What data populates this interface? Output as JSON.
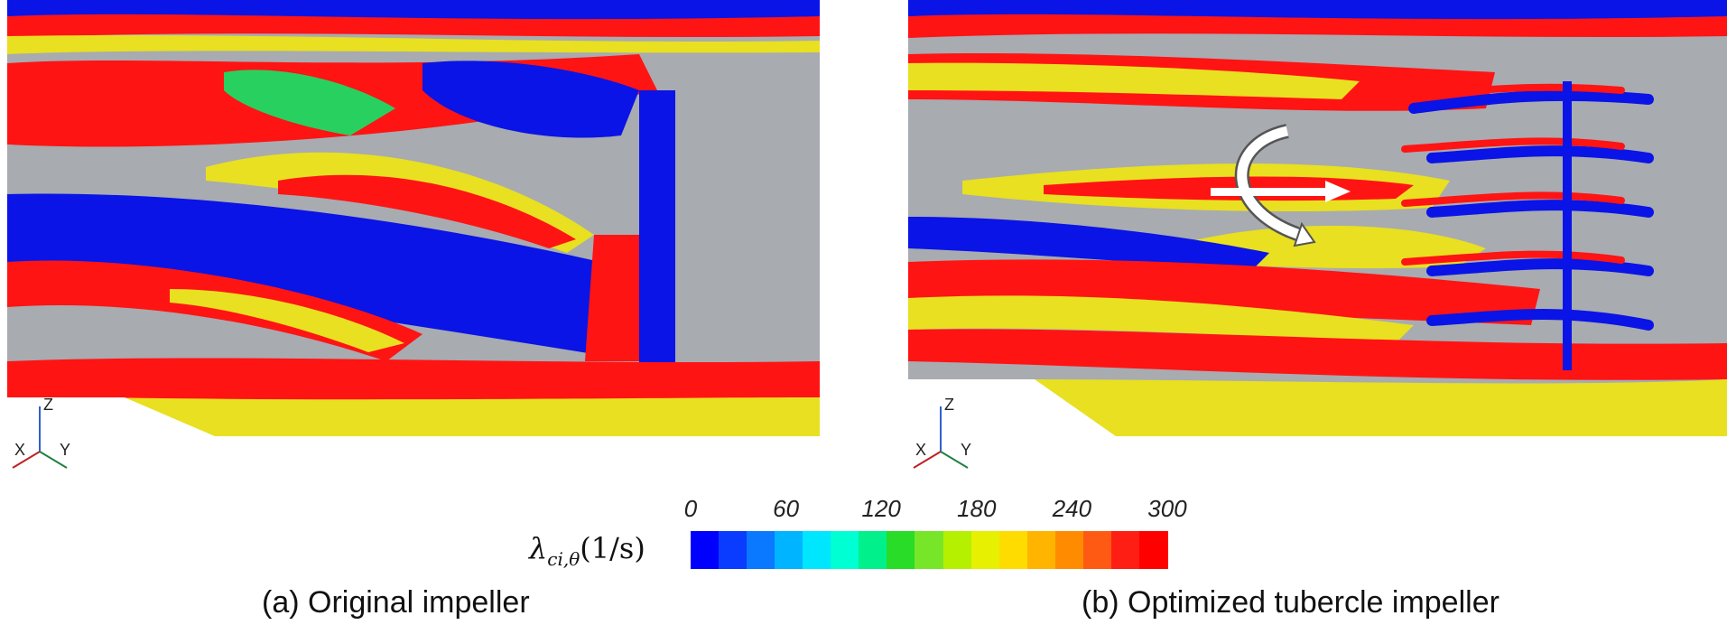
{
  "panels": [
    {
      "caption": "(a) Original impeller"
    },
    {
      "caption": "(b) Optimized tubercle impeller"
    }
  ],
  "axes": {
    "x": "X",
    "y": "Y",
    "z": "Z"
  },
  "colorbar": {
    "label_symbol": "λ",
    "label_subscript": "ci,θ",
    "label_unit": "(1/s)",
    "ticks": [
      "0",
      "60",
      "120",
      "180",
      "240",
      "300"
    ],
    "range": [
      0,
      300
    ],
    "colors": [
      "#0000ff",
      "#0a3cff",
      "#0a78ff",
      "#00b4ff",
      "#00e6ff",
      "#00ffd2",
      "#00f08c",
      "#28dc28",
      "#78e628",
      "#b4f000",
      "#e6f000",
      "#ffdc00",
      "#ffb400",
      "#ff8c00",
      "#ff5a14",
      "#ff1e14",
      "#ff0000"
    ]
  },
  "colors": {
    "gray_surface": "#a8abb0",
    "blue": "#0a14e6",
    "red": "#ff1414",
    "yellow": "#e8e020",
    "green": "#28d060"
  }
}
